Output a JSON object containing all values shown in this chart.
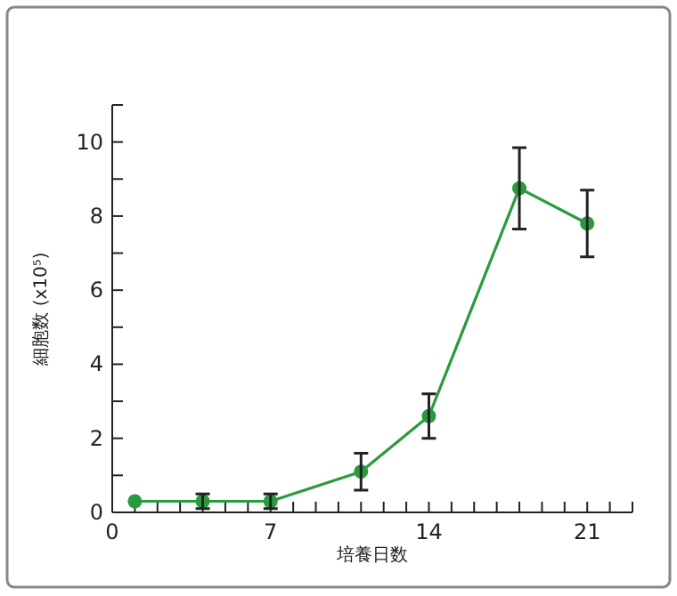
{
  "chart_data": {
    "type": "line",
    "xlabel": "培養日数",
    "ylabel": "細胞数 (x10⁵)",
    "x": [
      1,
      4,
      7,
      11,
      14,
      18,
      21
    ],
    "series": [
      {
        "color": "#2a9a3f",
        "values": [
          0.3,
          0.3,
          0.3,
          1.1,
          2.6,
          8.75,
          7.8
        ],
        "errors": [
          null,
          0.2,
          0.2,
          0.5,
          0.6,
          1.1,
          0.9
        ]
      }
    ],
    "xlim": [
      0,
      23
    ],
    "xticks": [
      0,
      {
        "value": 1,
        "label": null
      },
      {
        "value": 2,
        "label": null
      },
      {
        "value": 3,
        "label": null
      },
      {
        "value": 4,
        "label": null
      },
      {
        "value": 5,
        "label": null
      },
      {
        "value": 6,
        "label": null
      },
      7,
      {
        "value": 8,
        "label": null
      },
      {
        "value": 9,
        "label": null
      },
      {
        "value": 10,
        "label": null
      },
      {
        "value": 11,
        "label": null
      },
      {
        "value": 12,
        "label": null
      },
      {
        "value": 13,
        "label": null
      },
      14,
      {
        "value": 15,
        "label": null
      },
      {
        "value": 16,
        "label": null
      },
      {
        "value": 17,
        "label": null
      },
      {
        "value": 18,
        "label": null
      },
      {
        "value": 19,
        "label": null
      },
      {
        "value": 20,
        "label": null
      },
      21,
      {
        "value": 22,
        "label": null
      },
      {
        "value": 23,
        "label": null
      }
    ],
    "ylim": [
      0,
      11
    ],
    "yticks": [
      0,
      {
        "value": 1,
        "label": null
      },
      2,
      {
        "value": 3,
        "label": null
      },
      4,
      {
        "value": 5,
        "label": null
      },
      6,
      {
        "value": 7,
        "label": null
      },
      8,
      {
        "value": 9,
        "label": null
      },
      10,
      {
        "value": 11,
        "label": null
      }
    ],
    "grid": false,
    "marker": "circle",
    "line_style": "solid"
  }
}
